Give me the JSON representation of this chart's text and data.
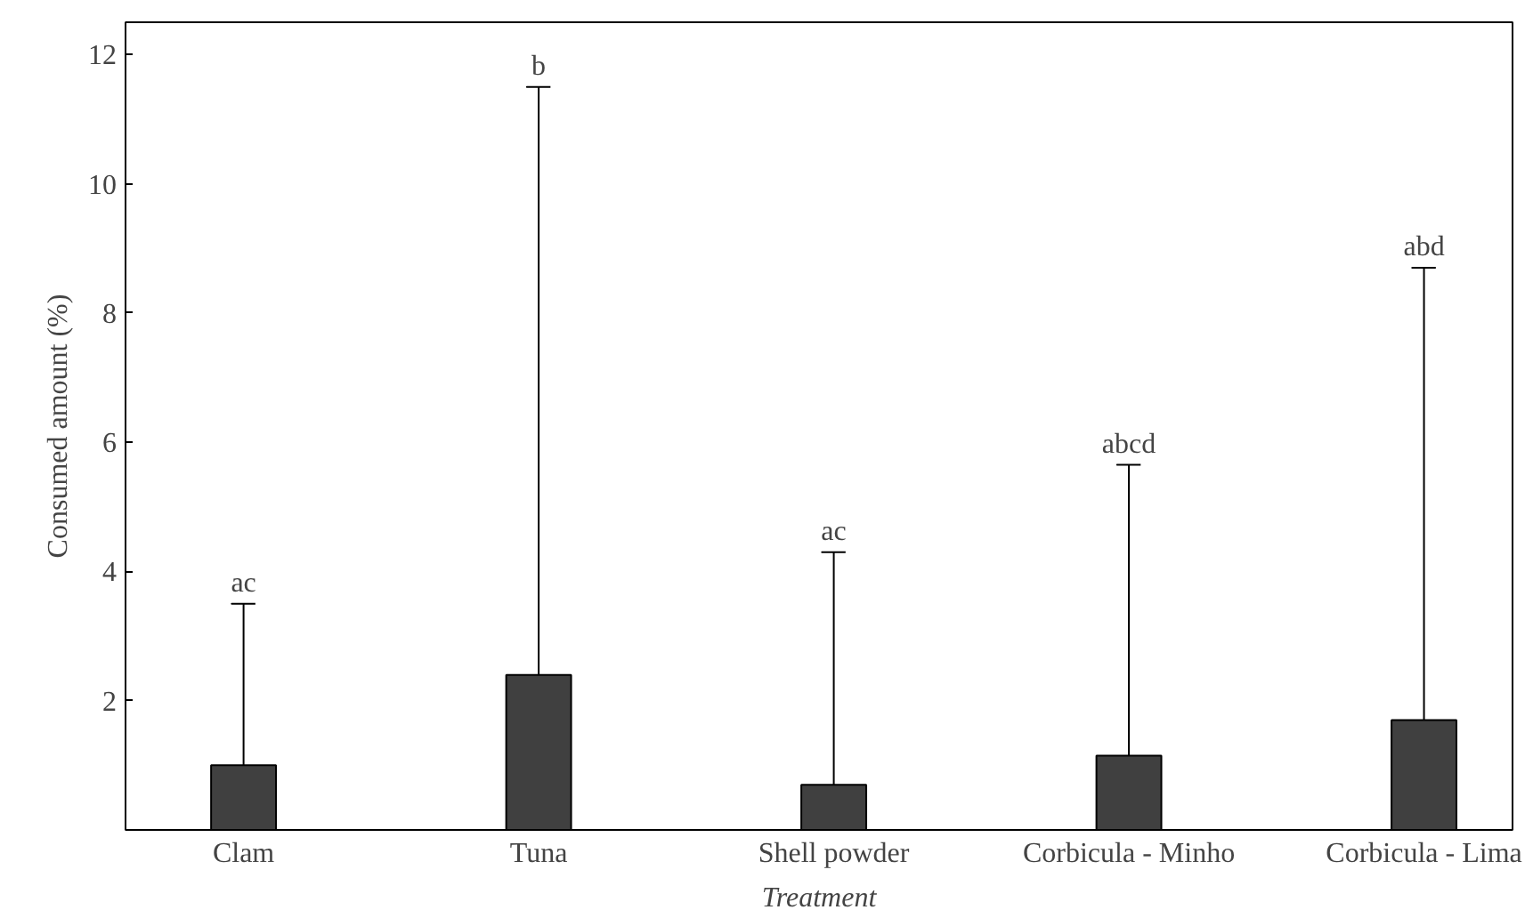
{
  "chart_data": {
    "type": "bar",
    "xlabel": "Treatment",
    "ylabel": "Consumed amount (%)",
    "categories": [
      "Clam",
      "Tuna",
      "Shell powder",
      "Corbicula - Minho",
      "Corbicula - Lima"
    ],
    "values": [
      1.0,
      2.4,
      0.7,
      1.15,
      1.7
    ],
    "errors": [
      [
        1.0,
        3.5
      ],
      [
        2.4,
        11.5
      ],
      [
        0.7,
        4.3
      ],
      [
        1.15,
        5.65
      ],
      [
        1.7,
        8.7
      ]
    ],
    "color": "#404040",
    "ylim": [
      0,
      12.5
    ],
    "yticks": [
      2,
      4,
      6,
      8,
      10,
      12
    ],
    "grid": false,
    "annotations": [
      "ac",
      "b",
      "ac",
      "abcd",
      "abd"
    ]
  }
}
